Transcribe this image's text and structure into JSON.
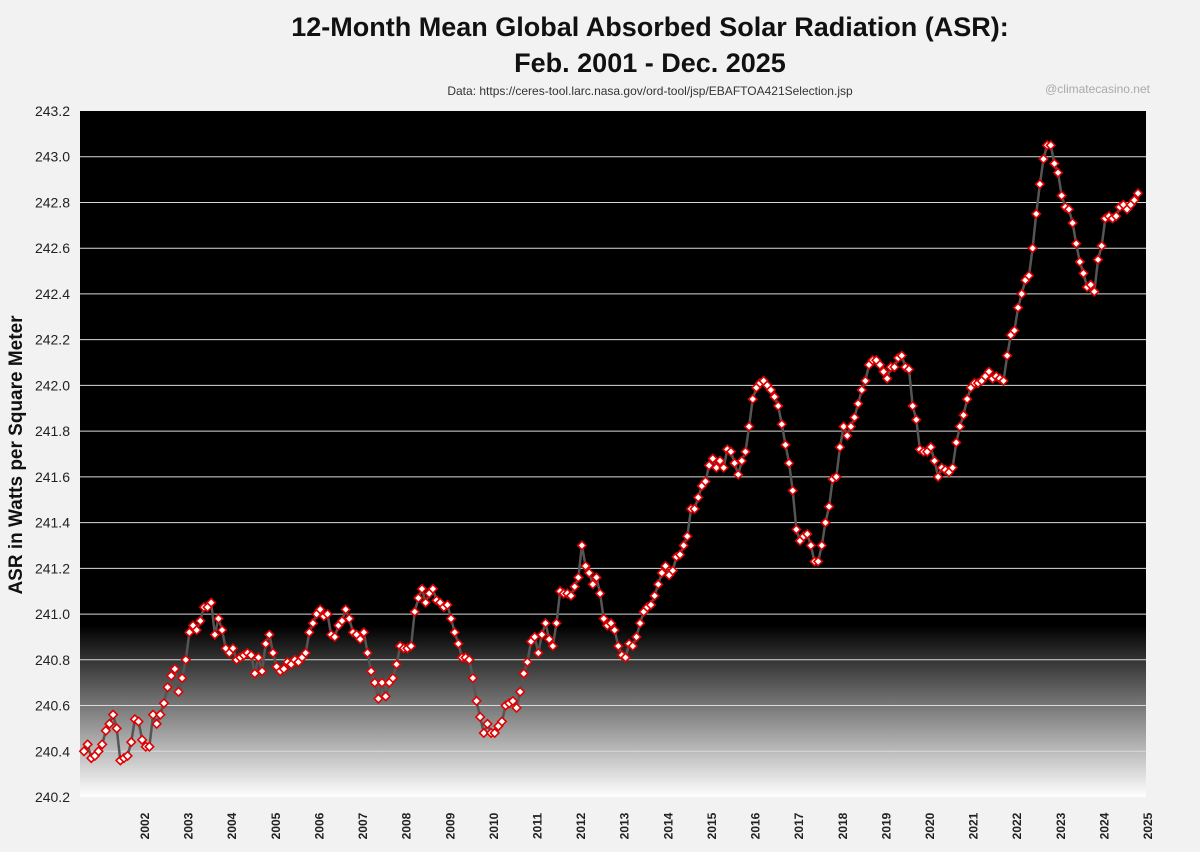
{
  "title_line1": "12-Month Mean Global Absorbed Solar Radiation (ASR):",
  "title_line2": "Feb. 2001 - Dec. 2025",
  "source": "Data: https://ceres-tool.larc.nasa.gov/ord-tool/jsp/EBAFTOA421Selection.jsp",
  "credit": "@climatecasino.net",
  "ylabel": "ASR in Watts per Square Meter",
  "colors": {
    "line": "#555555",
    "marker_edge": "#e00000",
    "marker_fill": "#ffffff",
    "gridline": "#d9d9d9"
  },
  "chart_data": {
    "type": "line",
    "title": "12-Month Mean Global Absorbed Solar Radiation (ASR): Feb. 2001 - Dec. 2025",
    "xlabel": "",
    "ylabel": "ASR in Watts per Square Meter",
    "x_start": "2001-02",
    "x_end": "2025-12",
    "x_ticks": [
      "2002",
      "2003",
      "2004",
      "2005",
      "2006",
      "2007",
      "2008",
      "2009",
      "2010",
      "2011",
      "2012",
      "2013",
      "2014",
      "2015",
      "2016",
      "2017",
      "2018",
      "2019",
      "2020",
      "2021",
      "2022",
      "2023",
      "2024",
      "2025"
    ],
    "y_ticks": [
      "240.2",
      "240.4",
      "240.6",
      "240.8",
      "241.0",
      "241.2",
      "241.4",
      "241.6",
      "241.8",
      "242.0",
      "242.2",
      "242.4",
      "242.6",
      "242.8",
      "243.0",
      "243.2"
    ],
    "ylim": [
      240.2,
      243.2
    ],
    "grid": "horizontal",
    "marker": "diamond",
    "series": [
      {
        "values": [
          240.4,
          240.43,
          240.37,
          240.38,
          240.4,
          240.43,
          240.49,
          240.52,
          240.56,
          240.5,
          240.36,
          240.37,
          240.38,
          240.44,
          240.54,
          240.53,
          240.45,
          240.42,
          240.42,
          240.56,
          240.52,
          240.56,
          240.61,
          240.68,
          240.73,
          240.76,
          240.66,
          240.72,
          240.8,
          240.92,
          240.95,
          240.93,
          240.97,
          241.03,
          241.03,
          241.05,
          240.91,
          240.98,
          240.93,
          240.85,
          240.83,
          240.85,
          240.8,
          240.81,
          240.82,
          240.83,
          240.82,
          240.74,
          240.81,
          240.75,
          240.87,
          240.91,
          240.83,
          240.77,
          240.75,
          240.76,
          240.79,
          240.78,
          240.8,
          240.79,
          240.81,
          240.83,
          240.92,
          240.96,
          241.0,
          241.02,
          240.99,
          241.0,
          240.91,
          240.9,
          240.95,
          240.97,
          241.02,
          240.98,
          240.92,
          240.91,
          240.89,
          240.92,
          240.83,
          240.75,
          240.7,
          240.63,
          240.7,
          240.64,
          240.7,
          240.72,
          240.78,
          240.86,
          240.85,
          240.85,
          240.86,
          241.01,
          241.07,
          241.11,
          241.05,
          241.09,
          241.11,
          241.06,
          241.05,
          241.03,
          241.04,
          240.98,
          240.92,
          240.87,
          240.81,
          240.81,
          240.8,
          240.72,
          240.62,
          240.55,
          240.48,
          240.52,
          240.48,
          240.48,
          240.51,
          240.53,
          240.6,
          240.61,
          240.62,
          240.59,
          240.66,
          240.74,
          240.79,
          240.88,
          240.9,
          240.83,
          240.91,
          240.96,
          240.89,
          240.86,
          240.96,
          241.1,
          241.09,
          241.09,
          241.08,
          241.12,
          241.16,
          241.3,
          241.21,
          241.18,
          241.13,
          241.16,
          241.09,
          240.98,
          240.95,
          240.96,
          240.93,
          240.86,
          240.82,
          240.81,
          240.87,
          240.86,
          240.9,
          240.96,
          241.01,
          241.03,
          241.04,
          241.08,
          241.13,
          241.18,
          241.21,
          241.17,
          241.19,
          241.25,
          241.26,
          241.3,
          241.34,
          241.46,
          241.46,
          241.51,
          241.56,
          241.58,
          241.65,
          241.68,
          241.64,
          241.67,
          241.64,
          241.72,
          241.71,
          241.66,
          241.61,
          241.67,
          241.71,
          241.82,
          241.94,
          241.99,
          242.01,
          242.02,
          242.0,
          241.98,
          241.95,
          241.91,
          241.83,
          241.74,
          241.66,
          241.54,
          241.37,
          241.32,
          241.34,
          241.35,
          241.3,
          241.23,
          241.23,
          241.3,
          241.4,
          241.47,
          241.59,
          241.6,
          241.73,
          241.82,
          241.78,
          241.82,
          241.86,
          241.92,
          241.98,
          242.02,
          242.09,
          242.11,
          242.11,
          242.09,
          242.06,
          242.03,
          242.08,
          242.08,
          242.12,
          242.13,
          242.08,
          242.07,
          241.91,
          241.85,
          241.72,
          241.71,
          241.71,
          241.73,
          241.67,
          241.6,
          241.64,
          241.63,
          241.62,
          241.64,
          241.75,
          241.82,
          241.87,
          241.94,
          241.99,
          242.01,
          242.01,
          242.02,
          242.04,
          242.06,
          242.03,
          242.04,
          242.03,
          242.02,
          242.13,
          242.22,
          242.24,
          242.34,
          242.4,
          242.46,
          242.48,
          242.6,
          242.75,
          242.88,
          242.99,
          243.05,
          243.05,
          242.97,
          242.93,
          242.83,
          242.78,
          242.77,
          242.71,
          242.62,
          242.54,
          242.49,
          242.43,
          242.44,
          242.41,
          242.55,
          242.61,
          242.73,
          242.74,
          242.73,
          242.74,
          242.78,
          242.79,
          242.77,
          242.79,
          242.81,
          242.84
        ]
      }
    ]
  }
}
